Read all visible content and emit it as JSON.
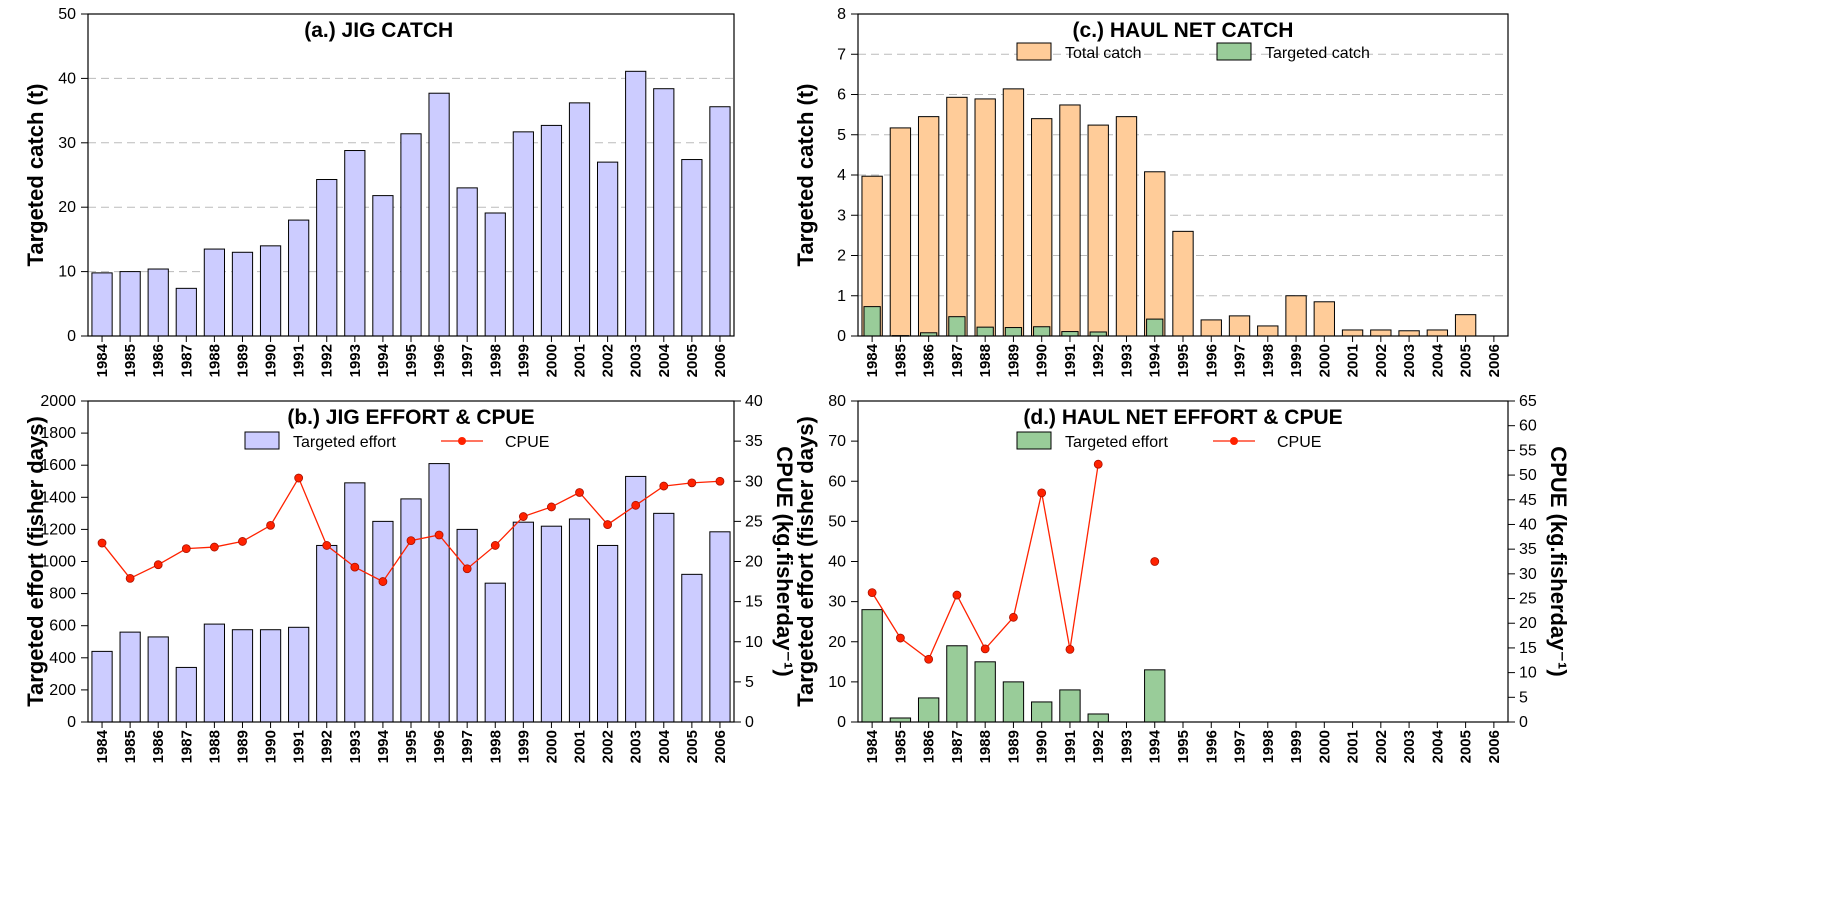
{
  "colors": {
    "jig_bar": "#ccccff",
    "total_catch_bar": "#ffcc99",
    "targeted_catch_bar": "#99cc99",
    "cpue_line": "#ff2200",
    "grid": "#bbbbbb"
  },
  "chart_data": [
    {
      "id": "a",
      "type": "bar",
      "title": "(a.) JIG CATCH",
      "ylabel": "Targeted catch (t)",
      "ylim": [
        0,
        50
      ],
      "yticks": [
        0,
        10,
        20,
        30,
        40,
        50
      ],
      "grid": true,
      "categories": [
        "1984",
        "1985",
        "1986",
        "1987",
        "1988",
        "1989",
        "1990",
        "1991",
        "1992",
        "1993",
        "1994",
        "1995",
        "1996",
        "1997",
        "1998",
        "1999",
        "2000",
        "2001",
        "2002",
        "2003",
        "2004",
        "2005",
        "2006"
      ],
      "series": [
        {
          "values": [
            9.8,
            10.0,
            10.4,
            7.4,
            13.5,
            13.0,
            14.0,
            18.0,
            24.3,
            28.8,
            21.8,
            31.4,
            37.7,
            23.0,
            19.1,
            31.7,
            32.7,
            36.2,
            27.0,
            41.1,
            38.4,
            27.4,
            35.6
          ],
          "color_key": "jig_bar"
        }
      ]
    },
    {
      "id": "b",
      "type": "bar+line",
      "title": "(b.) JIG EFFORT & CPUE",
      "ylabel": "Targeted effort (fisher days)",
      "y2label": "CPUE (kg.fisherday⁻¹)",
      "ylim": [
        0,
        2000
      ],
      "yticks": [
        0,
        200,
        400,
        600,
        800,
        1000,
        1200,
        1400,
        1600,
        1800,
        2000
      ],
      "y2lim": [
        0,
        40
      ],
      "y2ticks": [
        0,
        5,
        10,
        15,
        20,
        25,
        30,
        35,
        40
      ],
      "legend": [
        "Targeted effort",
        "CPUE"
      ],
      "legend_position": "top-center",
      "categories": [
        "1984",
        "1985",
        "1986",
        "1987",
        "1988",
        "1989",
        "1990",
        "1991",
        "1992",
        "1993",
        "1994",
        "1995",
        "1996",
        "1997",
        "1998",
        "1999",
        "2000",
        "2001",
        "2002",
        "2003",
        "2004",
        "2005",
        "2006"
      ],
      "series": [
        {
          "name": "Targeted effort",
          "type": "bar",
          "axis": "left",
          "color_key": "jig_bar",
          "values": [
            440,
            560,
            530,
            340,
            610,
            575,
            575,
            590,
            1100,
            1490,
            1250,
            1390,
            1610,
            1200,
            865,
            1245,
            1220,
            1265,
            1100,
            1530,
            1300,
            920,
            1185
          ]
        },
        {
          "name": "CPUE",
          "type": "line",
          "axis": "right",
          "color_key": "cpue_line",
          "values": [
            22.3,
            17.9,
            19.6,
            21.6,
            21.8,
            22.5,
            24.5,
            30.4,
            22.0,
            19.3,
            17.5,
            22.6,
            23.3,
            19.1,
            22.0,
            25.6,
            26.8,
            28.6,
            24.6,
            27.0,
            29.4,
            29.8,
            30.0
          ]
        }
      ]
    },
    {
      "id": "c",
      "type": "bar",
      "title": "(c.) HAUL NET CATCH",
      "ylabel": "Targeted catch (t)",
      "ylim": [
        0,
        8
      ],
      "yticks": [
        0,
        1,
        2,
        3,
        4,
        5,
        6,
        7,
        8
      ],
      "grid": true,
      "legend": [
        "Total catch",
        "Targeted catch"
      ],
      "legend_position": "top-center",
      "categories": [
        "1984",
        "1985",
        "1986",
        "1987",
        "1988",
        "1989",
        "1990",
        "1991",
        "1992",
        "1993",
        "1994",
        "1995",
        "1996",
        "1997",
        "1998",
        "1999",
        "2000",
        "2001",
        "2002",
        "2003",
        "2004",
        "2005",
        "2006"
      ],
      "series": [
        {
          "name": "Total catch",
          "color_key": "total_catch_bar",
          "values": [
            3.97,
            5.17,
            5.45,
            5.93,
            5.89,
            6.14,
            5.4,
            5.74,
            5.24,
            5.45,
            4.08,
            2.6,
            0.4,
            0.5,
            0.25,
            1.0,
            0.85,
            0.15,
            0.15,
            0.13,
            0.15,
            0.53,
            0.0
          ]
        },
        {
          "name": "Targeted catch",
          "color_key": "targeted_catch_bar",
          "values": [
            0.73,
            0.01,
            0.08,
            0.48,
            0.22,
            0.21,
            0.23,
            0.11,
            0.1,
            0.0,
            0.42,
            0.0,
            0.0,
            0.0,
            0.0,
            0.0,
            0.0,
            0.0,
            0.0,
            0.0,
            0.0,
            0.0,
            0.0
          ]
        }
      ]
    },
    {
      "id": "d",
      "type": "bar+line",
      "title": "(d.) HAUL NET EFFORT & CPUE",
      "ylabel": "Targeted effort (fisher days)",
      "y2label": "CPUE (kg.fisherday⁻¹)",
      "ylim": [
        0,
        80
      ],
      "yticks": [
        0,
        10,
        20,
        30,
        40,
        50,
        60,
        70,
        80
      ],
      "y2lim": [
        0,
        65
      ],
      "y2ticks": [
        0,
        5,
        10,
        15,
        20,
        25,
        30,
        35,
        40,
        45,
        50,
        55,
        60,
        65
      ],
      "legend": [
        "Targeted effort",
        "CPUE"
      ],
      "legend_position": "top-center",
      "categories": [
        "1984",
        "1985",
        "1986",
        "1987",
        "1988",
        "1989",
        "1990",
        "1991",
        "1992",
        "1993",
        "1994",
        "1995",
        "1996",
        "1997",
        "1998",
        "1999",
        "2000",
        "2001",
        "2002",
        "2003",
        "2004",
        "2005",
        "2006"
      ],
      "series": [
        {
          "name": "Targeted effort",
          "type": "bar",
          "axis": "left",
          "color_key": "targeted_catch_bar",
          "values": [
            28,
            1,
            6,
            19,
            15,
            10,
            5,
            8,
            2,
            0,
            13,
            0,
            0,
            0,
            0,
            0,
            0,
            0,
            0,
            0,
            0,
            0,
            0
          ]
        },
        {
          "name": "CPUE",
          "type": "line",
          "axis": "right",
          "color_key": "cpue_line",
          "values": [
            26.2,
            17.0,
            12.7,
            25.7,
            14.8,
            21.2,
            46.4,
            14.7,
            52.2,
            null,
            32.5,
            null,
            null,
            null,
            null,
            null,
            null,
            null,
            null,
            null,
            null,
            null,
            null
          ]
        }
      ]
    }
  ]
}
